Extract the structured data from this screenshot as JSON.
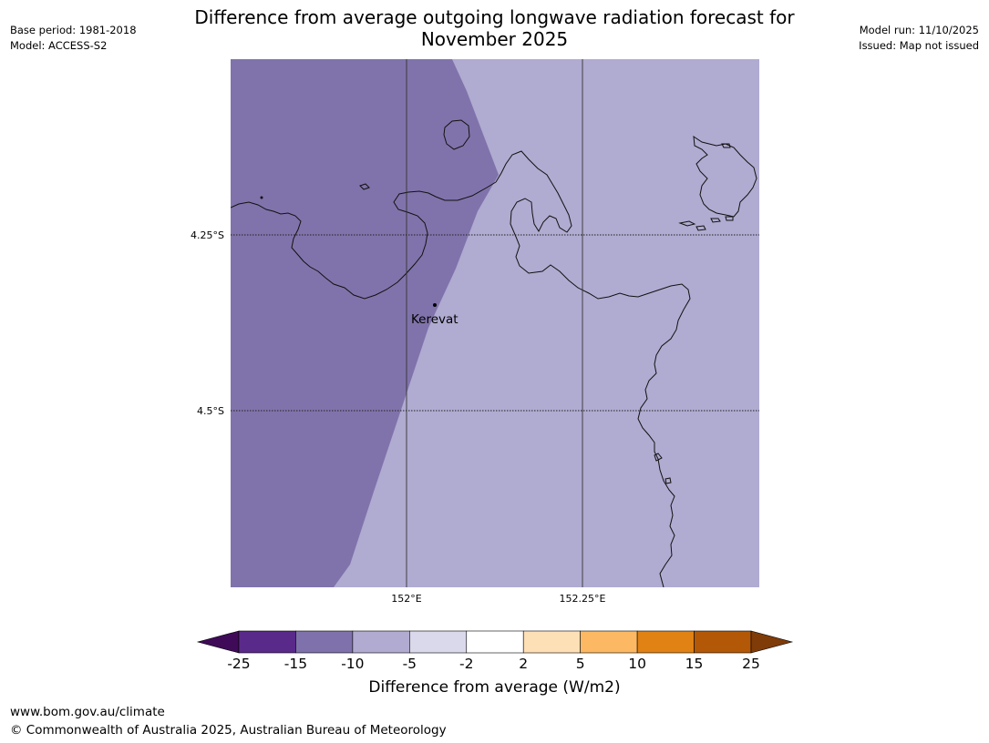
{
  "title_line1": "Difference from average outgoing longwave radiation forecast for",
  "title_line2": "November 2025",
  "meta_left": {
    "base_period": "Base period: 1981-2018",
    "model": "Model: ACCESS-S2"
  },
  "meta_right": {
    "model_run": "Model run: 11/10/2025",
    "issued": "Issued: Map not issued"
  },
  "map": {
    "lat_labels": [
      "4.25°S",
      "4.5°S"
    ],
    "lon_labels": [
      "152°E",
      "152.25°E"
    ],
    "place": {
      "name": "Kerevat"
    },
    "colors": {
      "dark_band": "#8073ab",
      "light_band": "#b0abd1",
      "coast": "#111111",
      "grid": "#333333"
    }
  },
  "colorbar": {
    "ticks": [
      "-25",
      "-15",
      "-10",
      "-5",
      "-2",
      "2",
      "5",
      "10",
      "15",
      "25"
    ],
    "colors": [
      "#3f0b59",
      "#5a2a8a",
      "#7f72ac",
      "#b1abd1",
      "#d9d9eb",
      "#ffffff",
      "#fee0b6",
      "#fdb863",
      "#e08214",
      "#b35806",
      "#7f3b08"
    ],
    "label": "Difference from average (W/m2)"
  },
  "footer": {
    "url": "www.bom.gov.au/climate",
    "copyright": "© Commonwealth of Australia 2025, Australian Bureau of Meteorology"
  }
}
